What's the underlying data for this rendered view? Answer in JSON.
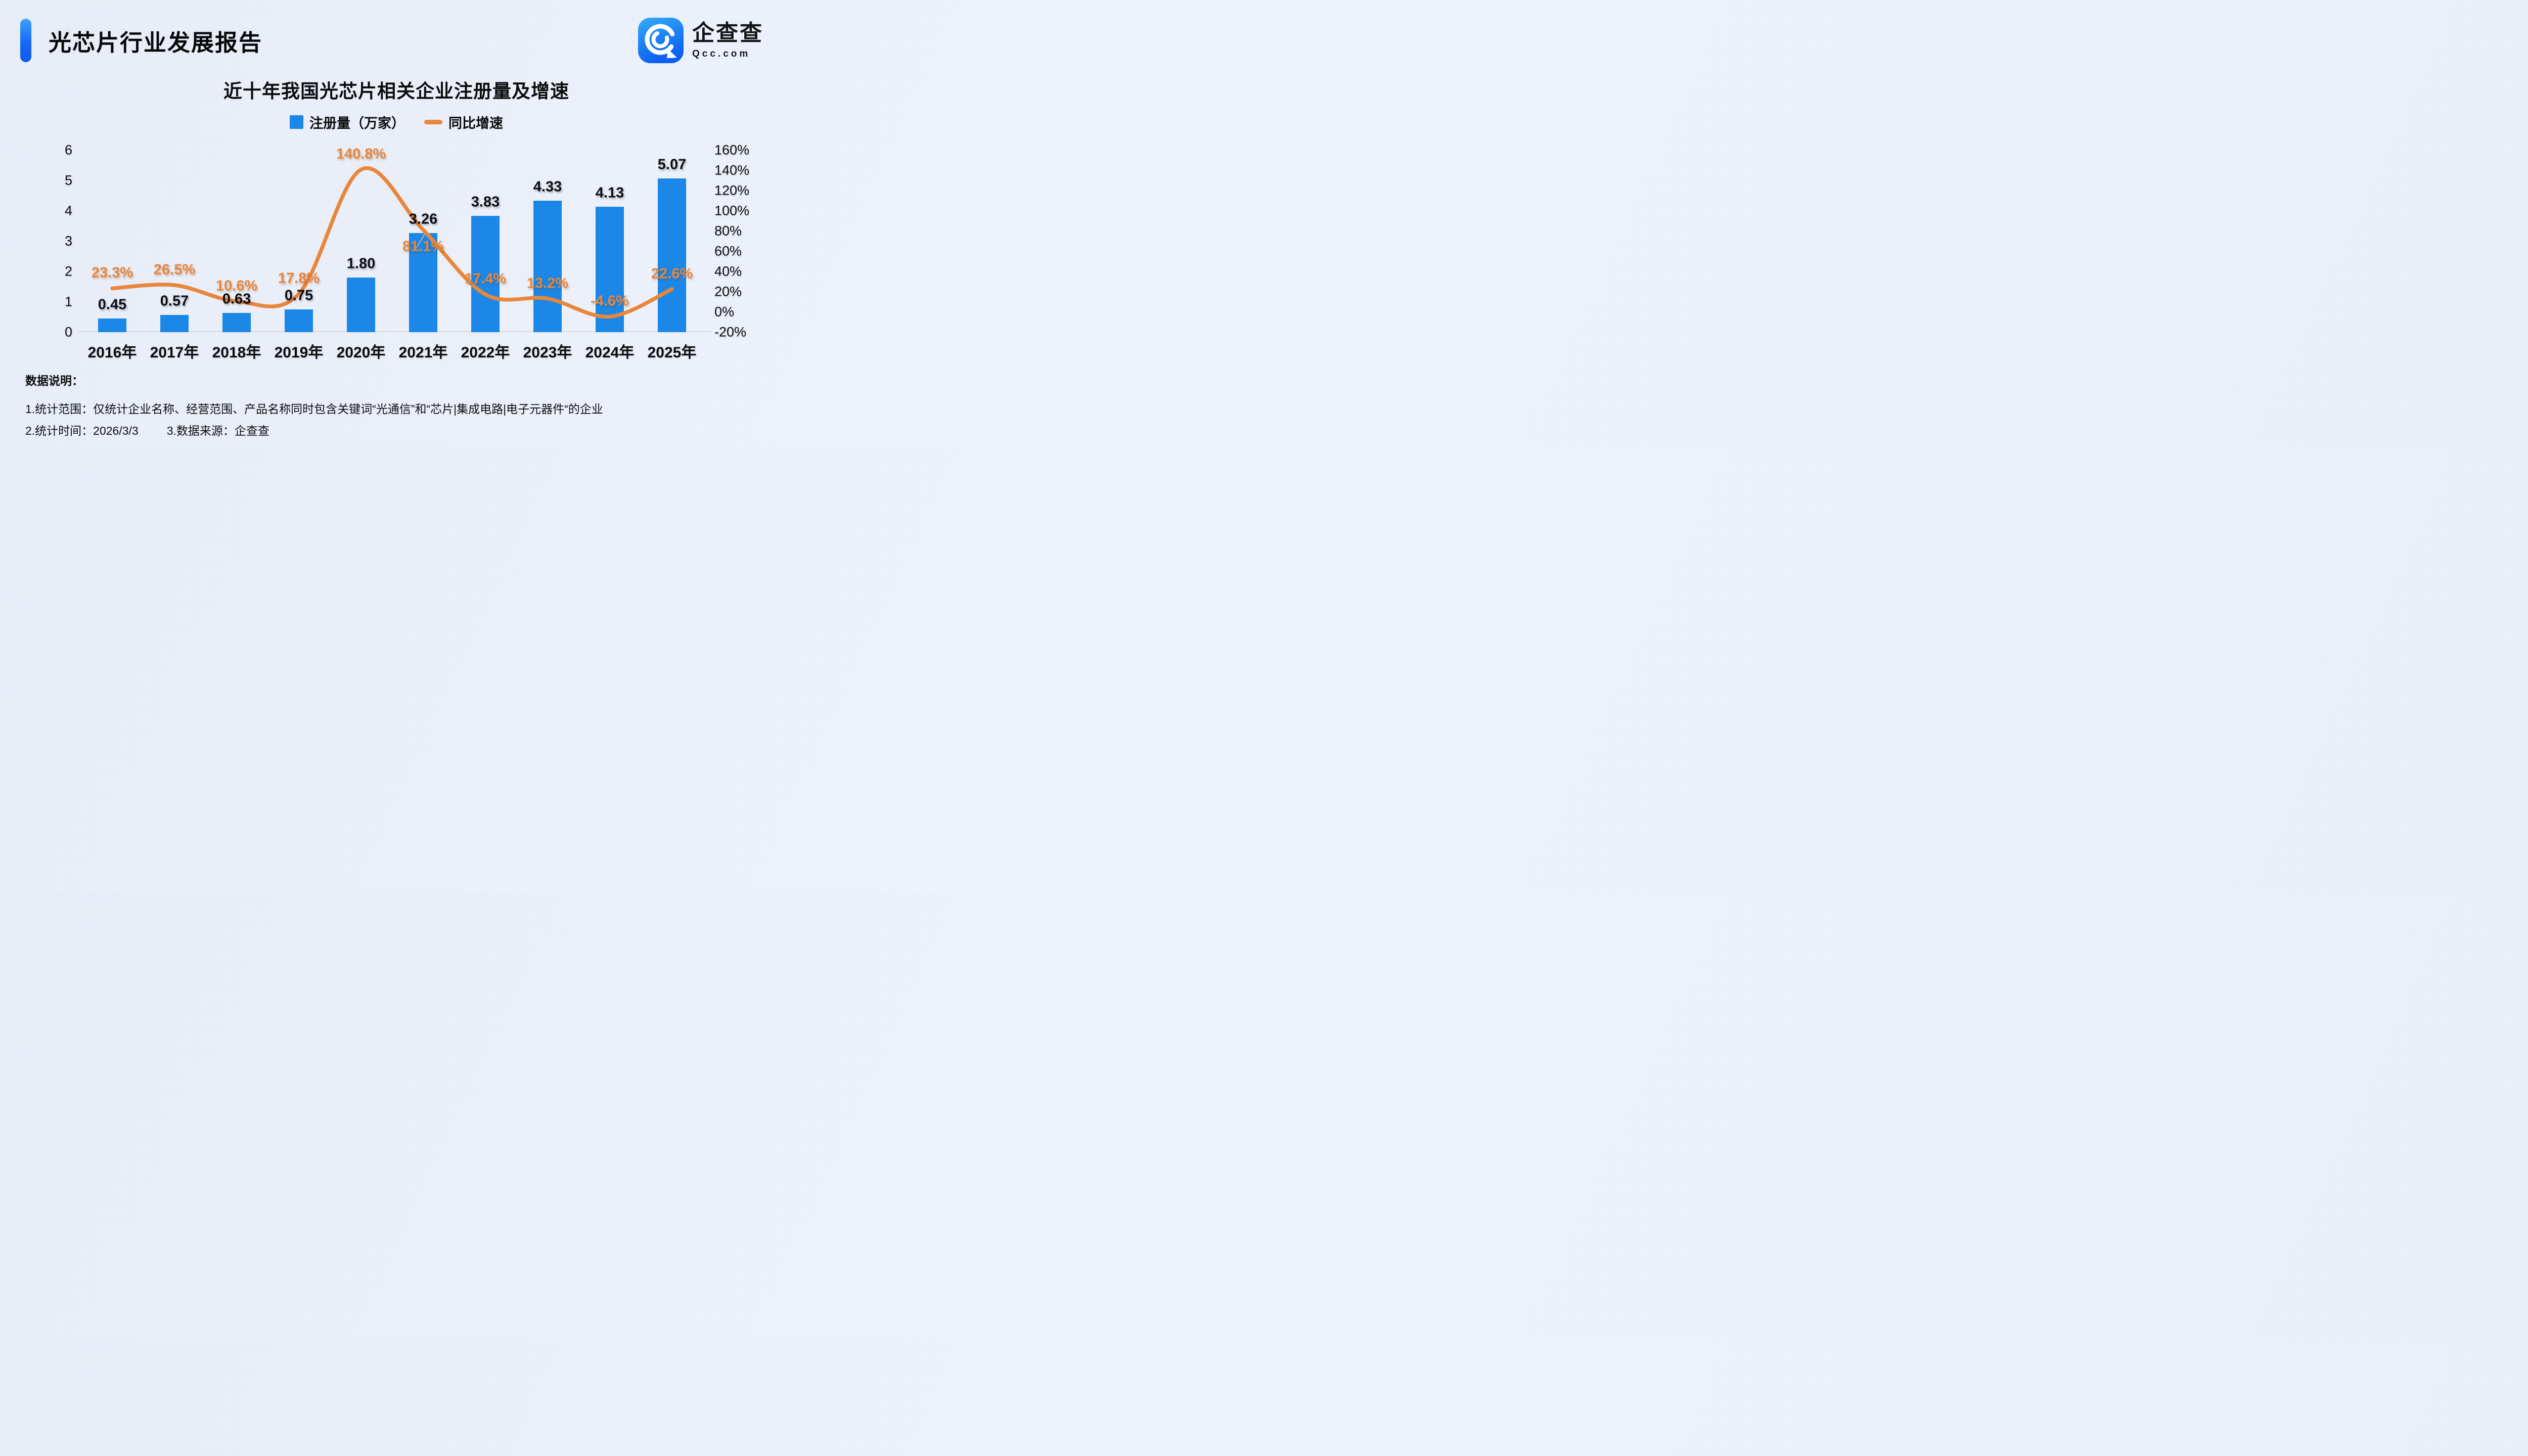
{
  "page": {
    "background": "#edf1f9",
    "accent_color": "#1668f5"
  },
  "header": {
    "title": "光芯片行业发展报告"
  },
  "logo": {
    "name_cn": "企查查",
    "name_en": "Qcc.com",
    "icon": "qcc-spiral-q-icon",
    "icon_gradient_top": "#34ACF9",
    "icon_gradient_bottom": "#0B5FF3"
  },
  "chart_data": {
    "type": "bar+line",
    "title": "近十年我国光芯片相关企业注册量及增速",
    "categories": [
      "2016年",
      "2017年",
      "2018年",
      "2019年",
      "2020年",
      "2021年",
      "2022年",
      "2023年",
      "2024年",
      "2025年"
    ],
    "series": [
      {
        "name": "注册量（万家）",
        "type": "bar",
        "color": "#1B87E6",
        "values": [
          0.45,
          0.57,
          0.63,
          0.75,
          1.8,
          3.26,
          3.83,
          4.33,
          4.13,
          5.07
        ],
        "labels": [
          "0.45",
          "0.57",
          "0.63",
          "0.75",
          "1.80",
          "3.26",
          "3.83",
          "4.33",
          "4.13",
          "5.07"
        ]
      },
      {
        "name": "同比增速",
        "type": "line",
        "color": "#E8863C",
        "values_pct": [
          23.3,
          26.5,
          10.6,
          17.8,
          140.8,
          81.1,
          17.4,
          13.2,
          -4.6,
          22.6
        ],
        "labels": [
          "23.3%",
          "26.5%",
          "10.6%",
          "17.8%",
          "140.8%",
          "81.1%",
          "17.4%",
          "13.2%",
          "-4.6%",
          "22.6%"
        ],
        "label_position": [
          "above",
          "above",
          "above",
          "above",
          "above",
          "below",
          "above",
          "above",
          "above",
          "above"
        ]
      }
    ],
    "left_axis": {
      "ticks": [
        6,
        5,
        4,
        3,
        2,
        1,
        0
      ],
      "range": [
        0,
        6
      ]
    },
    "right_axis": {
      "ticks": [
        "160%",
        "140%",
        "120%",
        "100%",
        "80%",
        "60%",
        "40%",
        "20%",
        "0%",
        "-20%"
      ],
      "range": [
        -20,
        160
      ]
    },
    "legend": [
      {
        "label": "注册量（万家）",
        "swatch": "square",
        "color": "#1B87E6"
      },
      {
        "label": "同比增速",
        "swatch": "line",
        "color": "#E8863C"
      }
    ],
    "grid": false,
    "legend_position": "top-center"
  },
  "notes": {
    "heading": "数据说明：",
    "line1": "1.统计范围：仅统计企业名称、经营范围、产品名称同时包含关键词“光通信”和“芯片|集成电路|电子元器件“的企业",
    "line2_parts": [
      "2.统计时间：2026/3/3",
      "3.数据来源：企查查"
    ]
  }
}
